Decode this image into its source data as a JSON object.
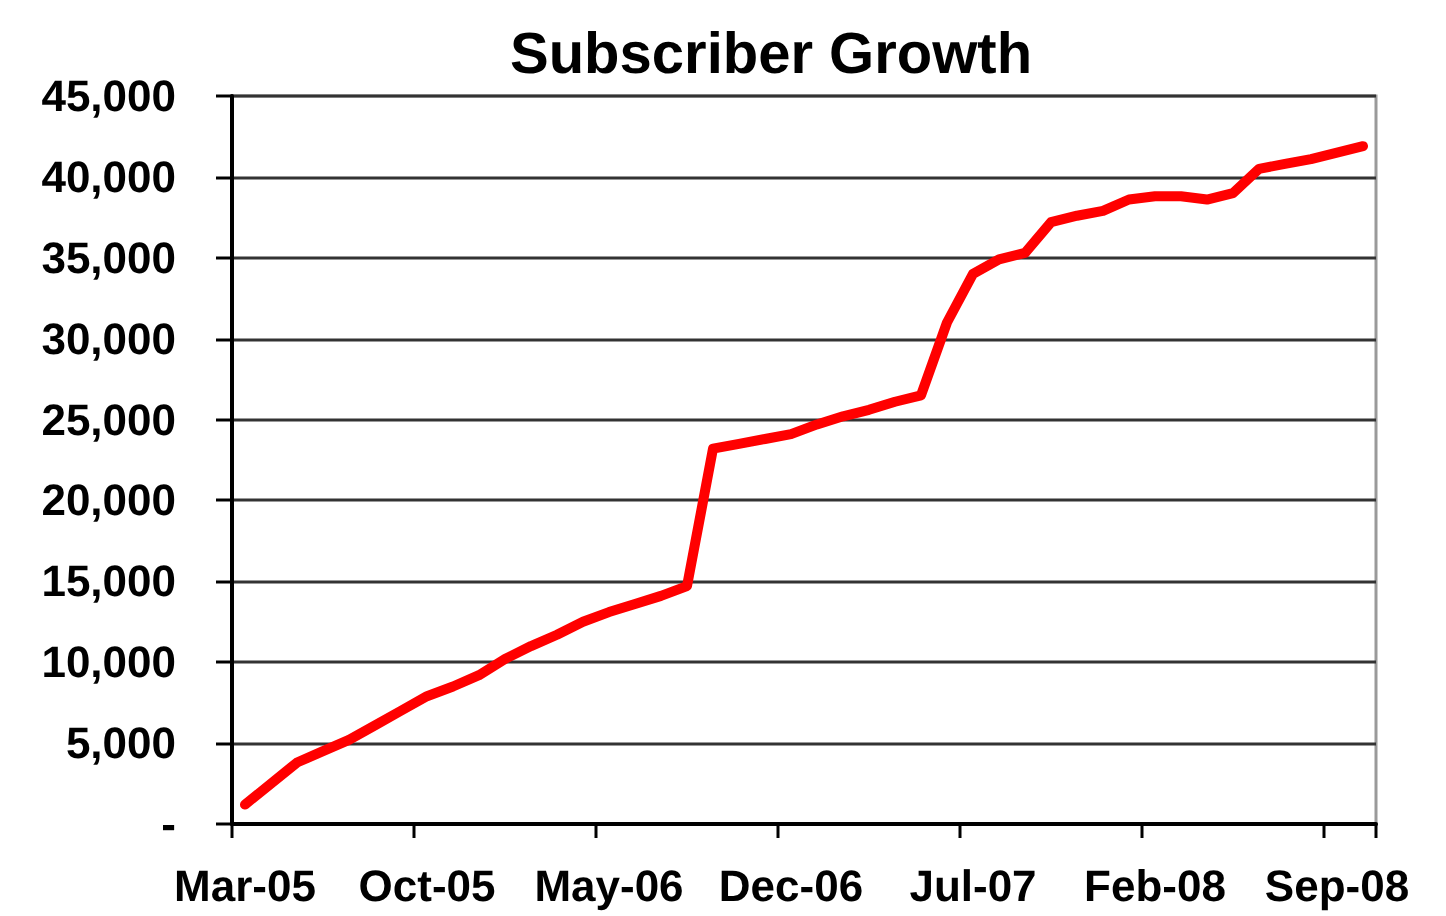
{
  "chart_data": {
    "type": "line",
    "title": "Subscriber Growth",
    "categories": [
      "Mar-05",
      null,
      null,
      null,
      null,
      null,
      null,
      "Oct-05",
      null,
      null,
      null,
      null,
      null,
      null,
      "May-06",
      null,
      null,
      null,
      null,
      null,
      null,
      "Dec-06",
      null,
      null,
      null,
      null,
      null,
      null,
      "Jul-07",
      null,
      null,
      null,
      null,
      null,
      null,
      "Feb-08",
      null,
      null,
      null,
      null,
      null,
      null,
      "Sep-08",
      null
    ],
    "values": [
      1200,
      2500,
      3800,
      4500,
      5200,
      6100,
      7000,
      7900,
      8500,
      9200,
      10200,
      11000,
      11700,
      12500,
      13100,
      13600,
      14100,
      14700,
      23200,
      23500,
      23800,
      24100,
      24700,
      25200,
      25600,
      26100,
      26500,
      31000,
      34000,
      34900,
      35300,
      37200,
      37600,
      37900,
      38600,
      38800,
      38800,
      38600,
      39000,
      40500,
      40800,
      41100,
      41500,
      41900
    ],
    "color": "#ff0000",
    "ylim": [
      0,
      45000
    ],
    "yticks": [
      {
        "value": 0,
        "label": "-"
      },
      {
        "value": 5000,
        "label": "5,000"
      },
      {
        "value": 10000,
        "label": "10,000"
      },
      {
        "value": 15000,
        "label": "15,000"
      },
      {
        "value": 20000,
        "label": "20,000"
      },
      {
        "value": 25000,
        "label": "25,000"
      },
      {
        "value": 30000,
        "label": "30,000"
      },
      {
        "value": 35000,
        "label": "35,000"
      },
      {
        "value": 40000,
        "label": "40,000"
      },
      {
        "value": 45000,
        "label": "45,000"
      }
    ],
    "grid": "y",
    "marker": "none",
    "line_style": "solid"
  }
}
